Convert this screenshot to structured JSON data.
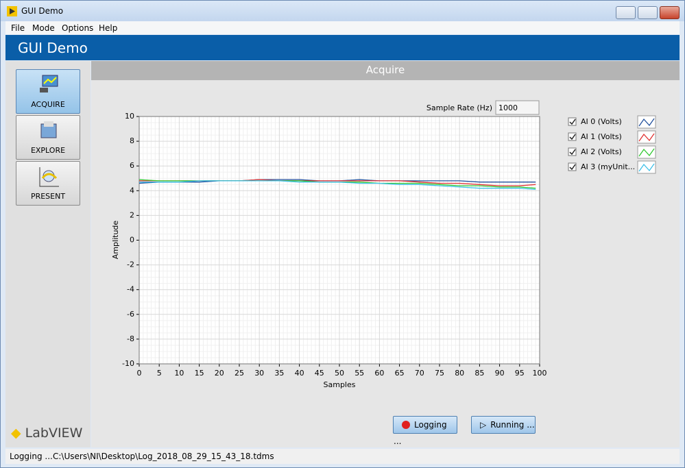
{
  "window": {
    "title": "GUI Demo"
  },
  "menu": [
    "File",
    "Mode",
    "Options",
    "Help"
  ],
  "header": {
    "title": "GUI Demo"
  },
  "sidebar": [
    "ACQUIRE",
    "EXPLORE",
    "PRESENT"
  ],
  "panel": {
    "title": "Acquire"
  },
  "controls": {
    "sample_rate_label": "Sample Rate (Hz)",
    "sample_rate": 1000,
    "logging_button": "Logging ...",
    "running_button": "Running ..."
  },
  "logo": "LabVIEW",
  "status": {
    "state": "Logging ...",
    "path": "C:\\Users\\NI\\Desktop\\Log_2018_08_29_15_43_18.tdms"
  },
  "chart_data": {
    "type": "line",
    "x_label": "Samples",
    "y_label": "Amplitude",
    "x": [
      0,
      5,
      10,
      15,
      20,
      25,
      30,
      35,
      40,
      45,
      50,
      55,
      60,
      65,
      70,
      75,
      80,
      85,
      90,
      95,
      99
    ],
    "series": [
      {
        "name": "AI 0 (Volts)",
        "color": "#1f4e9c",
        "values": [
          4.6,
          4.7,
          4.7,
          4.7,
          4.8,
          4.8,
          4.9,
          4.9,
          4.9,
          4.8,
          4.8,
          4.9,
          4.8,
          4.8,
          4.8,
          4.8,
          4.8,
          4.7,
          4.7,
          4.7,
          4.7
        ]
      },
      {
        "name": "AI 1 (Volts)",
        "color": "#e03030",
        "values": [
          4.8,
          4.8,
          4.8,
          4.8,
          4.8,
          4.8,
          4.9,
          4.8,
          4.8,
          4.8,
          4.8,
          4.8,
          4.8,
          4.8,
          4.7,
          4.6,
          4.6,
          4.5,
          4.4,
          4.4,
          4.5
        ]
      },
      {
        "name": "AI 2 (Volts)",
        "color": "#2ec82e",
        "values": [
          4.9,
          4.8,
          4.8,
          4.8,
          4.8,
          4.8,
          4.8,
          4.8,
          4.8,
          4.7,
          4.7,
          4.7,
          4.6,
          4.6,
          4.6,
          4.5,
          4.4,
          4.4,
          4.3,
          4.3,
          4.2
        ]
      },
      {
        "name": "AI 3 (myUnit...",
        "color": "#3cc0e8",
        "values": [
          4.7,
          4.7,
          4.7,
          4.8,
          4.8,
          4.8,
          4.8,
          4.8,
          4.7,
          4.7,
          4.7,
          4.6,
          4.6,
          4.5,
          4.5,
          4.4,
          4.3,
          4.2,
          4.2,
          4.2,
          4.1
        ]
      }
    ],
    "xlim": [
      0,
      100
    ],
    "ylim": [
      -10,
      10
    ],
    "xticks": [
      0,
      5,
      10,
      15,
      20,
      25,
      30,
      35,
      40,
      45,
      50,
      55,
      60,
      65,
      70,
      75,
      80,
      85,
      90,
      95,
      100
    ],
    "yticks": [
      -10,
      -8,
      -6,
      -4,
      -2,
      0,
      2,
      4,
      6,
      8,
      10
    ],
    "grid": true
  }
}
